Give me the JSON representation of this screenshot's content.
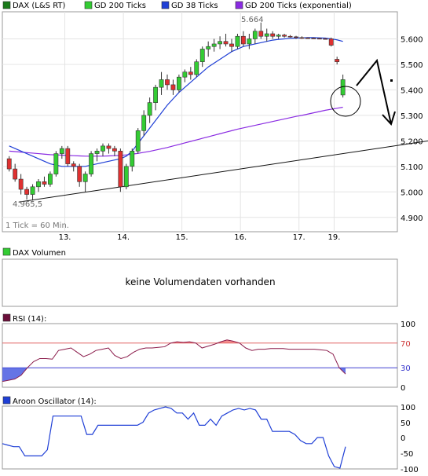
{
  "legend": [
    {
      "label": "DAX (L&S RT)",
      "color": "#1a7a1a"
    },
    {
      "label": "GD 200 Ticks",
      "color": "#33cc33"
    },
    {
      "label": "GD 38 Ticks",
      "color": "#1f3fd6"
    },
    {
      "label": "GD 200 Ticks (exponential)",
      "color": "#8a2be2"
    }
  ],
  "annotations": {
    "high_label": "5.664",
    "low_label": "4.965,5",
    "tick_note": "1 Tick = 60 Min."
  },
  "volume": {
    "title": "DAX Volumen",
    "message": "keine Volumendaten vorhanden"
  },
  "rsi": {
    "title": "RSI (14):",
    "ticks": [
      "100",
      "70",
      "30",
      "0"
    ]
  },
  "aroon": {
    "title": "Aroon Oscillator (14):",
    "ticks": [
      "100",
      "50",
      "0",
      "-50",
      "-100"
    ]
  },
  "chart_data": [
    {
      "type": "candlestick",
      "title": "DAX (L&S RT)",
      "x_tick_labels": [
        "13.",
        "14.",
        "15.",
        "16.",
        "17.",
        "19."
      ],
      "y_tick_labels": [
        "5.600",
        "5.500",
        "5.400",
        "5.300",
        "5.200",
        "5.100",
        "5.000",
        "4.900"
      ],
      "ylim": [
        4850,
        5700
      ],
      "session_breaks": [
        10,
        20,
        30,
        40,
        50,
        56
      ],
      "candles": [
        [
          5130,
          5140,
          5080,
          5090
        ],
        [
          5090,
          5110,
          5040,
          5050
        ],
        [
          5050,
          5070,
          4990,
          5010
        ],
        [
          5010,
          5020,
          4970,
          4990
        ],
        [
          4990,
          5030,
          4966,
          5020
        ],
        [
          5020,
          5050,
          5000,
          5040
        ],
        [
          5040,
          5060,
          5020,
          5030
        ],
        [
          5030,
          5080,
          5020,
          5070
        ],
        [
          5070,
          5160,
          5060,
          5150
        ],
        [
          5150,
          5180,
          5130,
          5170
        ],
        [
          5170,
          5180,
          5100,
          5110
        ],
        [
          5110,
          5120,
          5080,
          5100
        ],
        [
          5100,
          5110,
          5020,
          5040
        ],
        [
          5040,
          5080,
          5000,
          5070
        ],
        [
          5070,
          5160,
          5060,
          5150
        ],
        [
          5150,
          5170,
          5120,
          5160
        ],
        [
          5160,
          5190,
          5140,
          5180
        ],
        [
          5180,
          5190,
          5150,
          5170
        ],
        [
          5170,
          5180,
          5140,
          5160
        ],
        [
          5160,
          5170,
          5000,
          5020
        ],
        [
          5020,
          5110,
          5010,
          5100
        ],
        [
          5100,
          5170,
          5080,
          5160
        ],
        [
          5160,
          5250,
          5150,
          5240
        ],
        [
          5240,
          5320,
          5220,
          5300
        ],
        [
          5300,
          5370,
          5270,
          5350
        ],
        [
          5350,
          5420,
          5320,
          5410
        ],
        [
          5410,
          5470,
          5380,
          5440
        ],
        [
          5440,
          5460,
          5400,
          5420
        ],
        [
          5420,
          5440,
          5380,
          5400
        ],
        [
          5400,
          5460,
          5390,
          5450
        ],
        [
          5450,
          5480,
          5430,
          5470
        ],
        [
          5470,
          5490,
          5440,
          5460
        ],
        [
          5460,
          5520,
          5450,
          5510
        ],
        [
          5510,
          5570,
          5490,
          5560
        ],
        [
          5560,
          5590,
          5530,
          5570
        ],
        [
          5570,
          5600,
          5550,
          5580
        ],
        [
          5580,
          5610,
          5560,
          5590
        ],
        [
          5590,
          5620,
          5570,
          5580
        ],
        [
          5580,
          5600,
          5550,
          5570
        ],
        [
          5570,
          5620,
          5560,
          5610
        ],
        [
          5610,
          5630,
          5570,
          5580
        ],
        [
          5580,
          5620,
          5560,
          5600
        ],
        [
          5600,
          5640,
          5580,
          5630
        ],
        [
          5630,
          5664,
          5600,
          5610
        ],
        [
          5610,
          5640,
          5590,
          5620
        ],
        [
          5620,
          5630,
          5600,
          5610
        ],
        [
          5610,
          5620,
          5600,
          5615
        ],
        [
          5615,
          5620,
          5605,
          5610
        ],
        [
          5610,
          5615,
          5605,
          5608
        ],
        [
          5608,
          5612,
          5600,
          5605
        ],
        [
          5605,
          5610,
          5600,
          5604
        ],
        [
          5604,
          5606,
          5600,
          5603
        ],
        [
          5603,
          5605,
          5600,
          5602
        ],
        [
          5602,
          5604,
          5600,
          5601
        ],
        [
          5601,
          5603,
          5598,
          5600
        ],
        [
          5600,
          5605,
          5570,
          5575
        ],
        [
          5520,
          5530,
          5500,
          5510
        ],
        [
          5380,
          5460,
          5370,
          5440
        ]
      ],
      "ma200": [
        5160,
        5158,
        5156,
        5154,
        5152,
        5150,
        5148,
        5146,
        5145,
        5144,
        5143,
        5142,
        5141,
        5140,
        5140,
        5140,
        5140,
        5141,
        5142,
        5143,
        5145,
        5148,
        5151,
        5155,
        5159,
        5164,
        5169,
        5174,
        5180,
        5186,
        5192,
        5198,
        5204,
        5210,
        5216,
        5222,
        5228,
        5234,
        5240,
        5246,
        5251,
        5256,
        5261,
        5266,
        5271,
        5276,
        5281,
        5286,
        5291,
        5296,
        5300,
        5305,
        5310,
        5315,
        5320,
        5324,
        5328,
        5332
      ],
      "ma38": [
        5180,
        5170,
        5160,
        5150,
        5140,
        5130,
        5120,
        5110,
        5105,
        5100,
        5100,
        5100,
        5100,
        5100,
        5105,
        5110,
        5115,
        5120,
        5125,
        5130,
        5140,
        5160,
        5190,
        5220,
        5250,
        5280,
        5310,
        5340,
        5365,
        5390,
        5410,
        5430,
        5450,
        5470,
        5490,
        5505,
        5520,
        5535,
        5550,
        5560,
        5570,
        5575,
        5580,
        5585,
        5590,
        5595,
        5598,
        5600,
        5602,
        5603,
        5604,
        5605,
        5605,
        5604,
        5603,
        5600,
        5596,
        5590
      ],
      "trendline": [
        [
          0,
          4960
        ],
        [
          66,
          5200
        ]
      ]
    },
    {
      "type": "line",
      "title": "RSI (14):",
      "ylim": [
        0,
        100
      ],
      "guides": [
        70,
        30
      ],
      "values": [
        8,
        10,
        12,
        18,
        30,
        40,
        45,
        45,
        44,
        58,
        60,
        62,
        55,
        48,
        52,
        58,
        60,
        62,
        50,
        45,
        48,
        55,
        60,
        62,
        62,
        63,
        64,
        70,
        72,
        71,
        72,
        70,
        62,
        65,
        68,
        72,
        75,
        73,
        70,
        62,
        58,
        60,
        60,
        61,
        61,
        61,
        60,
        60,
        60,
        60,
        60,
        59,
        58,
        52,
        30,
        20
      ]
    },
    {
      "type": "line",
      "title": "Aroon Oscillator (14):",
      "ylim": [
        -100,
        100
      ],
      "values": [
        -20,
        -25,
        -30,
        -30,
        -60,
        -60,
        -60,
        -60,
        -40,
        70,
        70,
        70,
        70,
        70,
        70,
        10,
        10,
        40,
        40,
        40,
        40,
        40,
        40,
        40,
        40,
        50,
        80,
        90,
        95,
        100,
        95,
        80,
        80,
        60,
        80,
        40,
        40,
        60,
        40,
        70,
        80,
        90,
        95,
        90,
        95,
        90,
        60,
        60,
        20,
        20,
        20,
        20,
        10,
        -10,
        -20,
        -20,
        0,
        0,
        -60,
        -95,
        -100,
        -30
      ]
    }
  ]
}
